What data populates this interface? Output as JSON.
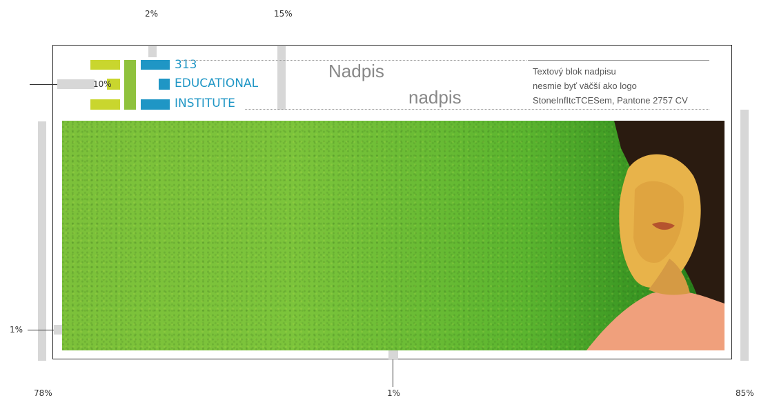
{
  "measurements": {
    "top_left_pct": "2%",
    "top_right_pct": "15%",
    "logo_left_pct": "10%",
    "left_mid_pct": "1%",
    "bottom_left_pct": "78%",
    "bottom_center_pct": "1%",
    "bottom_right_pct": "85%"
  },
  "logo": {
    "line1": "313",
    "line2": "EDUCATIONAL",
    "line3": "INSTITUTE"
  },
  "headline": {
    "word1": "Nadpis",
    "word2": "nadpis"
  },
  "textblock": {
    "line1": "Textový blok nadpisu",
    "line2": "nesmie byť väčší ako logo",
    "line3": "StoneInfItcTCESem, Pantone 2757 CV"
  },
  "colors": {
    "logo_green": "#c9d62e",
    "logo_mid_green": "#8fc23d",
    "logo_blue": "#1f96c5",
    "photo_green": "#7cc13a"
  },
  "image": {
    "description_icon": "photo-icon"
  }
}
